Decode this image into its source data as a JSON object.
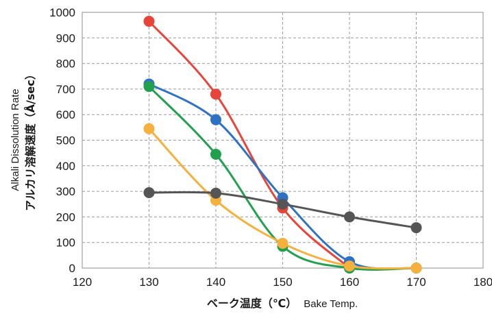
{
  "chart_data": {
    "type": "line",
    "title": "",
    "xlabel_jp": "ベーク温度（℃）",
    "xlabel_en": "Bake Temp.",
    "ylabel_en": "Alkali Dissolution Rate",
    "ylabel_jp": "アルカリ溶解速度（Å/sec）",
    "xlim": [
      120,
      180
    ],
    "ylim": [
      0,
      1000
    ],
    "x_ticks": [
      "120",
      "130",
      "140",
      "150",
      "160",
      "170",
      "180"
    ],
    "y_ticks": [
      "0",
      "100",
      "200",
      "300",
      "400",
      "500",
      "600",
      "700",
      "800",
      "900",
      "1000"
    ],
    "grid": true,
    "legend": "none",
    "series": [
      {
        "color": "#e8443a",
        "points": [
          [
            130,
            965
          ],
          [
            140,
            680
          ],
          [
            150,
            235
          ],
          [
            160,
            0
          ]
        ]
      },
      {
        "color": "#2f72c4",
        "points": [
          [
            130,
            720
          ],
          [
            140,
            580
          ],
          [
            150,
            275
          ],
          [
            160,
            25
          ],
          [
            170,
            0
          ]
        ]
      },
      {
        "color": "#21a04d",
        "points": [
          [
            130,
            710
          ],
          [
            140,
            445
          ],
          [
            150,
            85
          ],
          [
            160,
            0
          ],
          [
            170,
            0
          ]
        ]
      },
      {
        "color": "#f5b03e",
        "points": [
          [
            130,
            545
          ],
          [
            140,
            265
          ],
          [
            150,
            97
          ],
          [
            160,
            8
          ],
          [
            170,
            0
          ]
        ]
      },
      {
        "color": "#555555",
        "points": [
          [
            130,
            295
          ],
          [
            140,
            293
          ],
          [
            150,
            250
          ],
          [
            160,
            200
          ],
          [
            170,
            158
          ]
        ]
      }
    ]
  }
}
